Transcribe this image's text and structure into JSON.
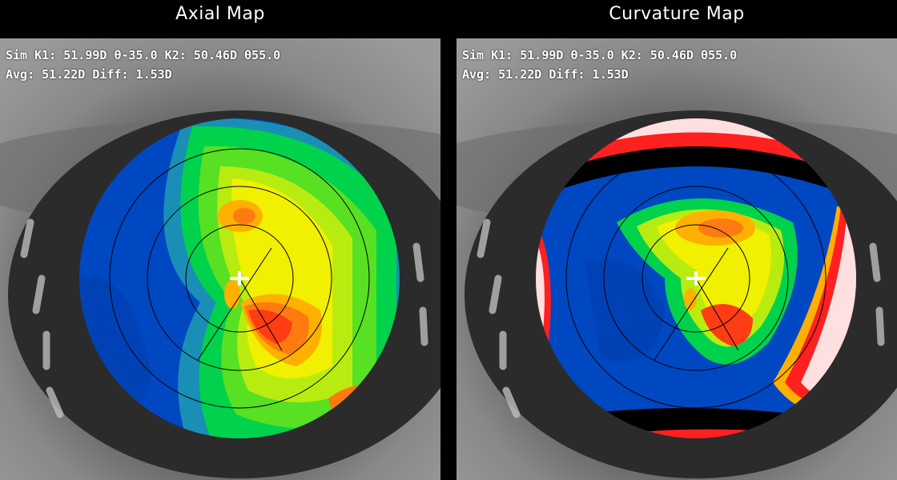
{
  "panels": [
    {
      "title": "Axial Map",
      "k_line": "Sim K1: 51.99D θ-35.0 K2: 50.46D θ55.0",
      "avg_line": "Avg: 51.22D Diff: 1.53D"
    },
    {
      "title": "Curvature Map",
      "k_line": "Sim K1: 51.99D θ-35.0 K2: 50.46D θ55.0",
      "avg_line": "Avg: 51.22D Diff: 1.53D"
    }
  ],
  "colors": {
    "background": "#000000",
    "text": "#ffffff",
    "low_power": "#0047c2",
    "mid_power": "#00d24c",
    "high_power": "#f0f000",
    "peak_power": "#ff3c14",
    "ring": "#000000",
    "center_marker": "#ffffff"
  }
}
